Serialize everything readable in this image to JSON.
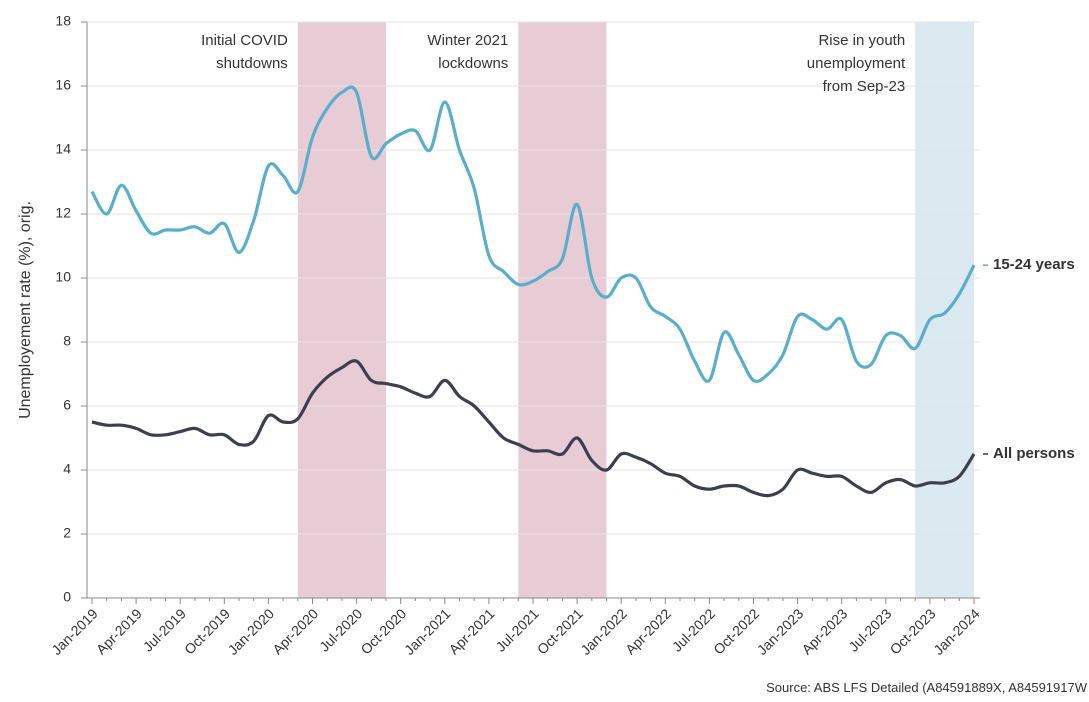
{
  "chart_data": {
    "type": "line",
    "y_label": "Unemployement rate (%), orig.",
    "source": "Source: ABS LFS Detailed (A84591889X, A84591917W",
    "categories": [
      "Jan-2019",
      null,
      null,
      "Apr-2019",
      null,
      null,
      "Jul-2019",
      null,
      null,
      "Oct-2019",
      null,
      null,
      "Jan-2020",
      null,
      null,
      "Apr-2020",
      null,
      null,
      "Jul-2020",
      null,
      null,
      "Oct-2020",
      null,
      null,
      "Jan-2021",
      null,
      null,
      "Apr-2021",
      null,
      null,
      "Jul-2021",
      null,
      null,
      "Oct-2021",
      null,
      null,
      "Jan-2022",
      null,
      null,
      "Apr-2022",
      null,
      null,
      "Jul-2022",
      null,
      null,
      "Oct-2022",
      null,
      null,
      "Jan-2023",
      null,
      null,
      "Apr-2023",
      null,
      null,
      "Jul-2023",
      null,
      null,
      "Oct-2023",
      null,
      null,
      "Jan-2024"
    ],
    "series": [
      {
        "name": "15-24 years",
        "color": "#5aaecb",
        "values": [
          12.7,
          12.0,
          12.9,
          12.1,
          11.4,
          11.5,
          11.5,
          11.6,
          11.4,
          11.7,
          10.8,
          11.8,
          13.5,
          13.2,
          12.7,
          14.4,
          15.3,
          15.8,
          15.8,
          13.8,
          14.2,
          14.5,
          14.6,
          14.0,
          15.5,
          14.0,
          12.8,
          10.7,
          10.2,
          9.8,
          9.9,
          10.2,
          10.6,
          12.3,
          10.0,
          9.4,
          10.0,
          10.0,
          9.1,
          8.8,
          8.4,
          7.4,
          6.8,
          8.3,
          7.6,
          6.8,
          7.0,
          7.6,
          8.8,
          8.7,
          8.4,
          8.7,
          7.4,
          7.3,
          8.2,
          8.2,
          7.8,
          8.7,
          8.9,
          9.5,
          10.4
        ]
      },
      {
        "name": "All persons",
        "color": "#3b3f4e",
        "values": [
          5.5,
          5.4,
          5.4,
          5.3,
          5.1,
          5.1,
          5.2,
          5.3,
          5.1,
          5.1,
          4.8,
          4.9,
          5.7,
          5.5,
          5.6,
          6.4,
          6.9,
          7.2,
          7.4,
          6.8,
          6.7,
          6.6,
          6.4,
          6.3,
          6.8,
          6.3,
          6.0,
          5.5,
          5.0,
          4.8,
          4.6,
          4.6,
          4.5,
          5.0,
          4.3,
          4.0,
          4.5,
          4.4,
          4.2,
          3.9,
          3.8,
          3.5,
          3.4,
          3.5,
          3.5,
          3.3,
          3.2,
          3.4,
          4.0,
          3.9,
          3.8,
          3.8,
          3.5,
          3.3,
          3.6,
          3.7,
          3.5,
          3.6,
          3.6,
          3.8,
          4.5
        ]
      }
    ],
    "bands": [
      {
        "from": 14,
        "to": 20,
        "color": "#e8ccd5",
        "label": [
          "Initial COVID",
          "shutdowns"
        ]
      },
      {
        "from": 29,
        "to": 35,
        "color": "#e8ccd5",
        "label": [
          "Winter 2021",
          "lockdowns"
        ]
      },
      {
        "from": 56,
        "to": 60,
        "color": "#dbe9f1",
        "label": [
          "Rise in youth",
          "unemployment",
          "from Sep-23"
        ]
      }
    ],
    "ylim": [
      0,
      18
    ],
    "yticks": [
      0,
      2,
      4,
      6,
      8,
      10,
      12,
      14,
      16,
      18
    ],
    "grid": true
  }
}
